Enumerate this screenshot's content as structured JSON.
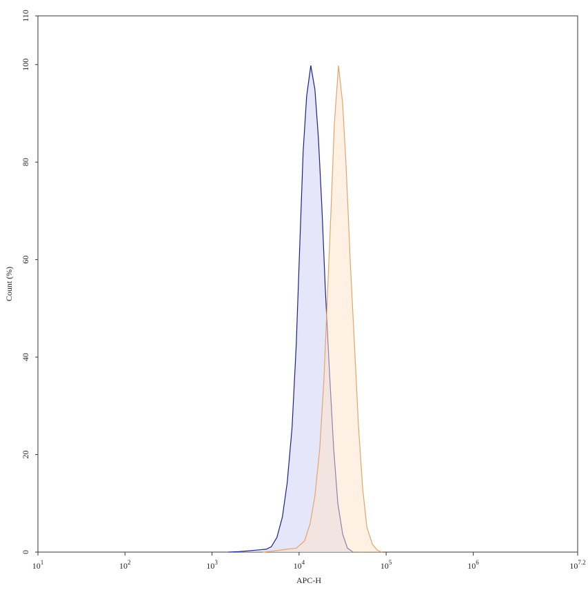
{
  "chart_data": {
    "type": "area",
    "xlabel": "APC-H",
    "ylabel": "Count (%)",
    "xscale": "log",
    "xlim": [
      10,
      15848932
    ],
    "ylim": [
      0,
      110
    ],
    "xticks": [
      {
        "value": 10,
        "label": "10",
        "sup": "1"
      },
      {
        "value": 100,
        "label": "10",
        "sup": "2"
      },
      {
        "value": 1000,
        "label": "10",
        "sup": "3"
      },
      {
        "value": 10000,
        "label": "10",
        "sup": "4"
      },
      {
        "value": 100000,
        "label": "10",
        "sup": "5"
      },
      {
        "value": 1000000,
        "label": "10",
        "sup": "6"
      },
      {
        "value": 15848932,
        "label": "10",
        "sup": "7.2"
      }
    ],
    "yticks": [
      0,
      20,
      40,
      60,
      80,
      100,
      110
    ],
    "series": [
      {
        "color": "#1c1f8a",
        "fill": "rgba(205,205,248,0.5)",
        "x": [
          1540,
          2030,
          3210,
          4220,
          4800,
          5560,
          6430,
          7310,
          8310,
          9280,
          10160,
          11140,
          12210,
          13630,
          15200,
          16660,
          18270,
          20020,
          22350,
          24950,
          27860,
          31660,
          35960,
          41690
        ],
        "values": [
          0,
          0.1,
          0.4,
          0.6,
          1.1,
          3,
          7.2,
          14.3,
          25.6,
          42.6,
          62.4,
          82.2,
          93.5,
          99.8,
          94.9,
          85,
          70.8,
          53.9,
          36.9,
          21.3,
          10,
          3.7,
          0.8,
          0
        ]
      },
      {
        "color": "#e3a46a",
        "fill": "rgba(253,228,200,0.5)",
        "x": [
          3860,
          5560,
          7310,
          9280,
          11560,
          13370,
          15200,
          17290,
          19310,
          21150,
          23180,
          25400,
          28380,
          31660,
          34670,
          38730,
          43260,
          48210,
          53830,
          60110,
          69530,
          79070,
          89950
        ],
        "values": [
          0,
          0.3,
          0.6,
          0.8,
          2.3,
          5.8,
          11.5,
          21.3,
          35.5,
          52.4,
          69.4,
          87.8,
          99.8,
          92,
          79.3,
          59.5,
          42.6,
          25.6,
          12.9,
          5.1,
          1.6,
          0.4,
          0
        ]
      }
    ]
  }
}
